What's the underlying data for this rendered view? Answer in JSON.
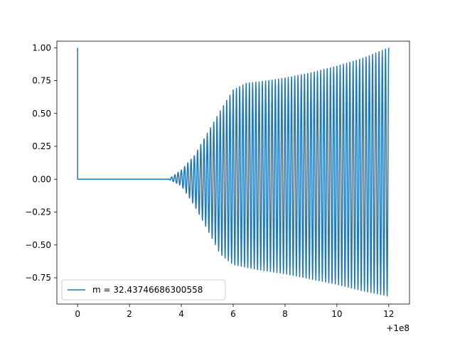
{
  "chart_data": {
    "type": "line",
    "title": "",
    "xlabel": "",
    "ylabel": "",
    "x_offset_label": "+1e8",
    "xlim": [
      -0.8,
      12.8
    ],
    "ylim": [
      -0.95,
      1.05
    ],
    "xticks": [
      0,
      2,
      4,
      6,
      8,
      10,
      12
    ],
    "xtick_labels": [
      "0",
      "2",
      "4",
      "6",
      "8",
      "10",
      "12"
    ],
    "yticks": [
      -0.75,
      -0.5,
      -0.25,
      0.0,
      0.25,
      0.5,
      0.75,
      1.0
    ],
    "ytick_labels": [
      "−0.75",
      "−0.50",
      "−0.25",
      "0.00",
      "0.25",
      "0.50",
      "0.75",
      "1.00"
    ],
    "grid": false,
    "legend": {
      "position": "lower-left"
    },
    "series": [
      {
        "name": "m = 32.43746686300558",
        "color": "#1f77b4",
        "shape": "initial spike to 1.00 at x=0, flat 0.00 from x≈0 to x≈3.5, then oscillation with growing amplitude",
        "initial": {
          "x": [
            0,
            0,
            0.05
          ],
          "y": [
            1.0,
            0.0,
            0.0
          ]
        },
        "envelope": {
          "x": [
            3.5,
            4.0,
            4.5,
            5.0,
            5.5,
            6.0,
            6.5,
            7.0,
            8.0,
            9.0,
            10.0,
            11.0,
            12.0
          ],
          "upper": [
            0.0,
            0.07,
            0.18,
            0.35,
            0.52,
            0.68,
            0.73,
            0.74,
            0.77,
            0.81,
            0.86,
            0.92,
            1.0
          ],
          "lower": [
            0.0,
            -0.05,
            -0.2,
            -0.38,
            -0.57,
            -0.65,
            -0.67,
            -0.69,
            -0.72,
            -0.76,
            -0.8,
            -0.85,
            -0.89
          ]
        },
        "oscillation_period": 0.125
      }
    ]
  }
}
